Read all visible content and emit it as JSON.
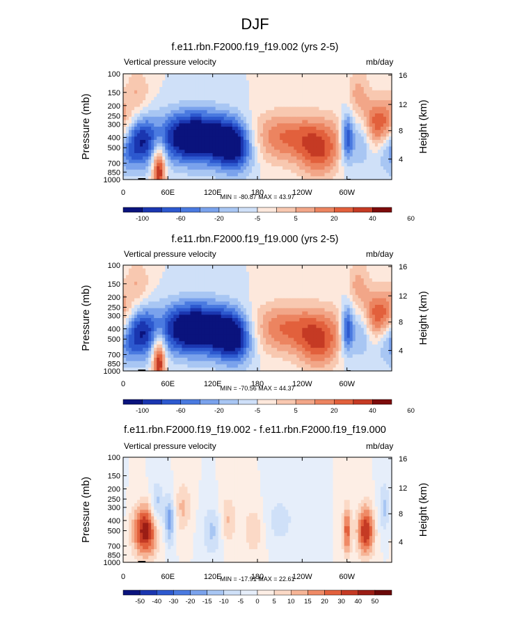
{
  "figure_title": "DJF",
  "colors": {
    "deep_blue": "#08127a",
    "mid_blue": "#2f5bd4",
    "light_blue": "#cfe2f7",
    "light_red": "#fbe0d0",
    "mid_red": "#f0926b",
    "deep_red": "#7d0b0b"
  },
  "common": {
    "variable_label": "Vertical pressure velocity",
    "units_label": "mb/day",
    "left_axis_label": "Pressure (mb)",
    "right_axis_label": "Height (km)",
    "pressure_ticks": [
      "100",
      "150",
      "200",
      "250",
      "300",
      "400",
      "500",
      "700",
      "850",
      "1000"
    ],
    "height_ticks": [
      "16",
      "12",
      "8",
      "4"
    ],
    "lon_ticks": [
      "0",
      "60E",
      "120E",
      "180",
      "120W",
      "60W"
    ]
  },
  "chart_data": [
    {
      "type": "heatmap",
      "title": "f.e11.rbn.F2000.f19_f19.002 (yrs 2-5)",
      "xlabel": "",
      "ylabel": "Pressure (mb)",
      "ylabel_right": "Height (km)",
      "stats": "MIN = -80.87  MAX = 43.97",
      "min": -80.87,
      "max": 43.97,
      "x_range": [
        0,
        360
      ],
      "y_range_mb": [
        1000,
        100
      ],
      "colorbar_levels": [
        "-100",
        "-60",
        "-20",
        "-5",
        "5",
        "20",
        "40",
        "60"
      ]
    },
    {
      "type": "heatmap",
      "title": "f.e11.rbn.F2000.f19_f19.000 (yrs 2-5)",
      "xlabel": "",
      "ylabel": "Pressure (mb)",
      "ylabel_right": "Height (km)",
      "stats": "MIN = -70.56  MAX = 44.37",
      "min": -70.56,
      "max": 44.37,
      "x_range": [
        0,
        360
      ],
      "y_range_mb": [
        1000,
        100
      ],
      "colorbar_levels": [
        "-100",
        "-60",
        "-20",
        "-5",
        "5",
        "20",
        "40",
        "60"
      ]
    },
    {
      "type": "heatmap",
      "title": "f.e11.rbn.F2000.f19_f19.002 - f.e11.rbn.F2000.f19_f19.000",
      "xlabel": "",
      "ylabel": "Pressure (mb)",
      "ylabel_right": "Height (km)",
      "stats": "MIN = -17.91  MAX = 22.61",
      "min": -17.91,
      "max": 22.61,
      "x_range": [
        0,
        360
      ],
      "y_range_mb": [
        1000,
        100
      ],
      "colorbar_levels": [
        "-50",
        "-40",
        "-30",
        "-20",
        "-15",
        "-10",
        "-5",
        "0",
        "5",
        "10",
        "15",
        "20",
        "30",
        "40",
        "50"
      ]
    }
  ]
}
